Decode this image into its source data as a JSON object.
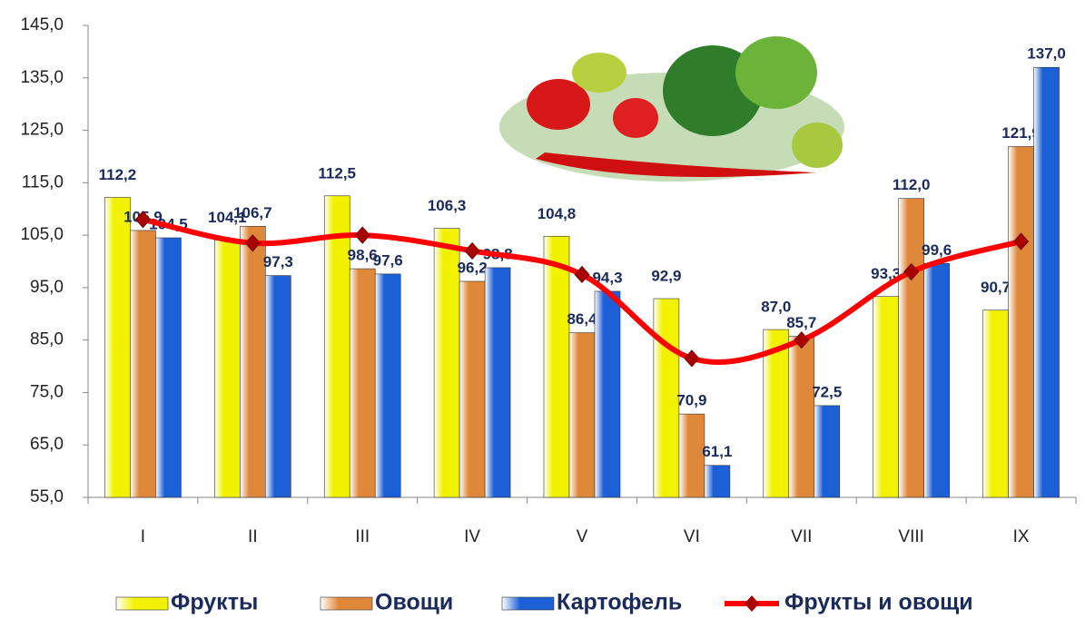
{
  "chart_data": {
    "type": "bar",
    "categories": [
      "I",
      "II",
      "III",
      "IV",
      "V",
      "VI",
      "VII",
      "VIII",
      "IX"
    ],
    "ylim": [
      55,
      145
    ],
    "yticks": [
      {
        "value": 55,
        "label": "55,0"
      },
      {
        "value": 65,
        "label": "65,0"
      },
      {
        "value": 75,
        "label": "75,0"
      },
      {
        "value": 85,
        "label": "85,0"
      },
      {
        "value": 95,
        "label": "95,0"
      },
      {
        "value": 105,
        "label": "105,0"
      },
      {
        "value": 115,
        "label": "115,0"
      },
      {
        "value": 125,
        "label": "125,0"
      },
      {
        "value": 135,
        "label": "135,0"
      },
      {
        "value": 145,
        "label": "145,0"
      }
    ],
    "series": [
      {
        "name": "Фрукты",
        "type": "bar",
        "color": "#f2f200",
        "values": [
          112.2,
          104.1,
          112.5,
          106.3,
          104.8,
          92.9,
          87.0,
          93.3,
          90.7
        ],
        "value_labels": [
          "112,2",
          "104,1",
          "112,5",
          "106,3",
          "104,8",
          "92,9",
          "87,0",
          "93,3",
          "90,7"
        ]
      },
      {
        "name": "Овощи",
        "type": "bar",
        "color": "#e0883a",
        "values": [
          105.9,
          106.7,
          98.6,
          96.2,
          86.4,
          70.9,
          85.7,
          112.0,
          121.9
        ],
        "value_labels": [
          "105,9",
          "106,7",
          "98,6",
          "96,2",
          "86,4",
          "70,9",
          "85,7",
          "112,0",
          "121,9"
        ]
      },
      {
        "name": "Картофель",
        "type": "bar",
        "color": "#1c5fd6",
        "values": [
          104.5,
          97.3,
          97.6,
          98.8,
          94.3,
          61.1,
          72.5,
          99.6,
          137.0
        ],
        "value_labels": [
          "104,5",
          "97,3",
          "97,6",
          "98,8",
          "94,3",
          "61,1",
          "72,5",
          "99,6",
          "137,0"
        ]
      },
      {
        "name": "Фрукты и овощи",
        "type": "line",
        "color": "#ff0000",
        "marker_color": "#a80000",
        "values": [
          108.0,
          103.5,
          105.0,
          102.0,
          97.5,
          81.5,
          85.0,
          98.0,
          103.8
        ]
      }
    ]
  }
}
